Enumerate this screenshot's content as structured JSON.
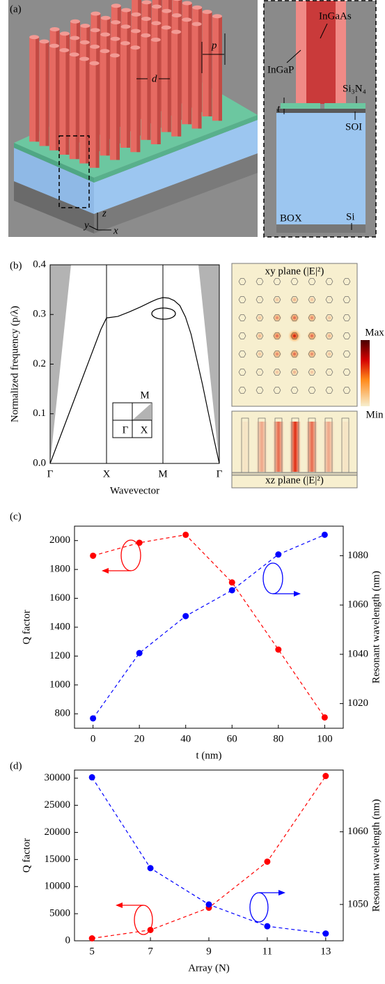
{
  "panel_a": {
    "panel": "(a)",
    "d": "d",
    "p": "p",
    "InGaAs": "InGaAs",
    "InGaP": "InGaP",
    "Si3N4": "Si₃N₄",
    "t": "t",
    "SOI": "SOI",
    "BOX": "BOX",
    "Si": "Si",
    "axis_z": "z",
    "axis_y": "y",
    "axis_x": "x"
  },
  "field_maps": {
    "xy_label": "xy plane (|E|²)",
    "xz_label": "xz plane (|E|²)",
    "colorbar_max": "Max",
    "colorbar_min": "Min"
  },
  "chart_data": [
    {
      "type": "line",
      "panel": "(b)",
      "xlabel": "Wavevector",
      "ylabel": "Normalized frequency (p/λ)",
      "xlim": [
        0,
        3
      ],
      "ylim": [
        0,
        0.4
      ],
      "xticks": [
        {
          "value": 0,
          "label": "Γ"
        },
        {
          "value": 1,
          "label": "X"
        },
        {
          "value": 2,
          "label": "M"
        },
        {
          "value": 3,
          "label": "Γ"
        }
      ],
      "yticks": [
        {
          "value": 0,
          "label": "0.0"
        },
        0.1,
        0.2,
        0.3,
        0.4
      ],
      "grid_x": true,
      "light_cone": {
        "color": "#b3b3b3",
        "x": [
          0,
          0.37,
          2.63,
          3
        ],
        "values": [
          0,
          0.4,
          0.4,
          0
        ]
      },
      "inset_labels": [
        "M",
        "Γ",
        "X"
      ],
      "series": [
        {
          "color": "#000000",
          "x": [
            0,
            0.2,
            0.4,
            0.6,
            0.8,
            0.9,
            1,
            1.2,
            1.4,
            1.6,
            1.8,
            1.9,
            2,
            2.1,
            2.2,
            2.3,
            2.4,
            2.5,
            2.6,
            2.7,
            2.8,
            2.9,
            3
          ],
          "values": [
            0,
            0.06,
            0.12,
            0.18,
            0.24,
            0.27,
            0.293,
            0.296,
            0.305,
            0.315,
            0.326,
            0.331,
            0.334,
            0.333,
            0.328,
            0.318,
            0.295,
            0.26,
            0.21,
            0.16,
            0.105,
            0.052,
            0
          ]
        }
      ]
    },
    {
      "type": "line",
      "panel": "(c)",
      "xlabel": "t (nm)",
      "ylabel": "Q factor",
      "y2label": "Resonant wavelength (nm)",
      "xlim": [
        -8,
        108
      ],
      "xticks": [
        0,
        20,
        40,
        60,
        80,
        100
      ],
      "ylim": [
        700,
        2100
      ],
      "yticks": [
        800,
        1000,
        1200,
        1400,
        1600,
        1800,
        2000
      ],
      "y2lim": [
        1010,
        1092
      ],
      "y2ticks": [
        1020,
        1040,
        1060,
        1080
      ],
      "series": [
        {
          "color": "#ff0000",
          "dashed": true,
          "markers": true,
          "x": [
            0,
            20,
            40,
            60,
            80,
            100
          ],
          "values": [
            1895,
            1985,
            2040,
            1710,
            1245,
            775
          ]
        },
        {
          "color": "#0000ff",
          "axis": "y2",
          "dashed": true,
          "markers": true,
          "x": [
            0,
            20,
            40,
            60,
            80,
            100
          ],
          "values": [
            1014,
            1040.5,
            1055.5,
            1066,
            1080.5,
            1088.5
          ]
        }
      ]
    },
    {
      "type": "line",
      "panel": "(d)",
      "xlabel": "Array (N)",
      "ylabel": "Q factor",
      "y2label": "Resonant wavelength (nm)",
      "xlim": [
        4.4,
        13.6
      ],
      "xticks": [
        5,
        7,
        9,
        11,
        13
      ],
      "ylim": [
        0,
        31500
      ],
      "yticks": [
        0,
        5000,
        10000,
        15000,
        20000,
        25000,
        30000
      ],
      "y2lim": [
        1045,
        1068.5
      ],
      "y2ticks": [
        1050,
        1060
      ],
      "series": [
        {
          "color": "#ff0000",
          "dashed": true,
          "markers": true,
          "x": [
            5,
            7,
            9,
            11,
            13
          ],
          "values": [
            450,
            2000,
            6100,
            14600,
            30400
          ]
        },
        {
          "color": "#0000ff",
          "axis": "y2",
          "dashed": true,
          "markers": true,
          "x": [
            5,
            7,
            9,
            11,
            13
          ],
          "values": [
            1067.5,
            1055,
            1050,
            1047,
            1046
          ]
        }
      ]
    }
  ]
}
